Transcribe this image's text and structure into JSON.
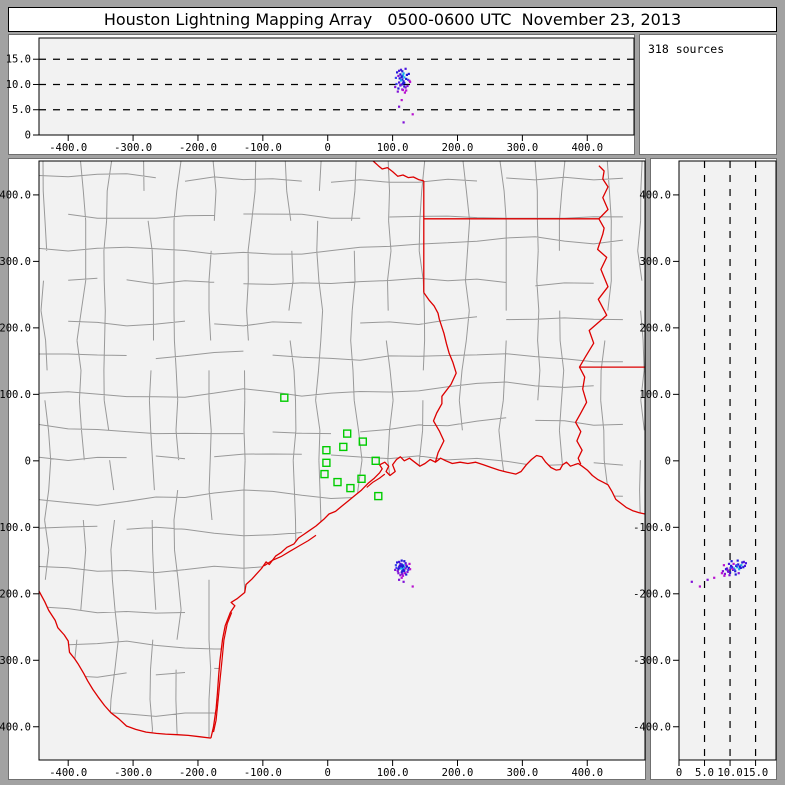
{
  "title": "Houston Lightning Mapping Array   0500-0600 UTC  November 23, 2013",
  "sources_label": "318 sources",
  "colors": {
    "page_bg": "#a2a2a2",
    "panel_bg": "#ffffff",
    "plot_bg": "#f2f2f2",
    "axis": "#000000",
    "grid_dash": "#000000",
    "county_line": "#999999",
    "state_border": "#dd0000",
    "station_green": "#00cc00"
  },
  "chart_data": {
    "type": "scatter",
    "title": "Houston Lightning Mapping Array   0500-0600 UTC  November 23, 2013",
    "sources_count": 318,
    "axes": {
      "ew_km": {
        "range": [
          -445,
          489
        ],
        "ticks": [
          -400,
          -300,
          -200,
          -100,
          0,
          100,
          200,
          300,
          400
        ],
        "tick_labels": [
          "-400.0",
          "-300.0",
          "-200.0",
          "-100.0",
          "0",
          "100.0",
          "200.0",
          "300.0",
          "400.0"
        ]
      },
      "ns_km": {
        "range": [
          -450,
          451
        ],
        "ticks": [
          400,
          300,
          200,
          100,
          0,
          -100,
          -200,
          -300,
          -400
        ],
        "tick_labels": [
          "400.0",
          "300.0",
          "200.0",
          "100.0",
          "0",
          "-100.0",
          "-200.0",
          "-300.0",
          "-400.0"
        ]
      },
      "alt_km": {
        "range": [
          0,
          19.2
        ],
        "ticks": [
          0,
          5,
          10,
          15
        ],
        "tick_labels": [
          "0",
          "5.0",
          "10.0",
          "15.0"
        ],
        "gridlines": [
          5,
          10,
          15
        ]
      }
    },
    "stations": [
      [
        -67,
        95
      ],
      [
        30,
        41
      ],
      [
        54,
        29
      ],
      [
        24,
        21
      ],
      [
        -2,
        16
      ],
      [
        74,
        0
      ],
      [
        -2,
        -3
      ],
      [
        -5,
        -20
      ],
      [
        52,
        -27
      ],
      [
        15,
        -32
      ],
      [
        35,
        -41
      ],
      [
        78,
        -53
      ]
    ],
    "point_colors": [
      "#2218d8",
      "#4a14e0",
      "#8012d8",
      "#b812d0",
      "#18b0e8",
      "#3c46ee"
    ],
    "points": [
      [
        113,
        -158,
        12.9,
        1
      ],
      [
        115,
        -160,
        12.6,
        0
      ],
      [
        117,
        -157,
        12.2,
        4
      ],
      [
        112,
        -161,
        12.0,
        0
      ],
      [
        116,
        -163,
        11.8,
        4
      ],
      [
        114,
        -156,
        11.6,
        0
      ],
      [
        118,
        -160,
        11.4,
        4
      ],
      [
        111,
        -158,
        11.2,
        0
      ],
      [
        115,
        -166,
        11.0,
        0
      ],
      [
        113,
        -162,
        10.8,
        4
      ],
      [
        117,
        -164,
        10.6,
        0
      ],
      [
        110,
        -160,
        10.4,
        1
      ],
      [
        116,
        -158,
        10.2,
        0
      ],
      [
        114,
        -168,
        10.0,
        0
      ],
      [
        112,
        -155,
        9.8,
        1
      ],
      [
        118,
        -166,
        9.6,
        0
      ],
      [
        120,
        -162,
        9.4,
        2
      ],
      [
        109,
        -163,
        9.2,
        0
      ],
      [
        115,
        -170,
        9.0,
        2
      ],
      [
        121,
        -157,
        8.8,
        3
      ],
      [
        108,
        -166,
        8.6,
        2
      ],
      [
        119,
        -169,
        8.4,
        3
      ],
      [
        107,
        -153,
        12.4,
        0
      ],
      [
        122,
        -159,
        11.9,
        0
      ],
      [
        124,
        -164,
        10.9,
        5
      ],
      [
        106,
        -161,
        10.1,
        5
      ],
      [
        123,
        -167,
        9.7,
        2
      ],
      [
        126,
        -155,
        10.7,
        3
      ],
      [
        105,
        -157,
        11.3,
        5
      ],
      [
        125,
        -161,
        12.1,
        0
      ],
      [
        110,
        -152,
        12.7,
        1
      ],
      [
        120,
        -154,
        13.1,
        1
      ],
      [
        112,
        -172,
        9.9,
        2
      ],
      [
        118,
        -151,
        10.3,
        0
      ],
      [
        116,
        -173,
        8.9,
        3
      ],
      [
        109,
        -169,
        11.7,
        2
      ],
      [
        121,
        -171,
        11.1,
        0
      ],
      [
        114,
        -150,
        11.5,
        0
      ],
      [
        127,
        -163,
        10.5,
        3
      ],
      [
        104,
        -164,
        9.5,
        2
      ],
      [
        114,
        -176,
        6.9,
        3
      ],
      [
        117,
        -182,
        2.5,
        2
      ],
      [
        131,
        -189,
        4.1,
        3
      ],
      [
        110,
        -179,
        5.6,
        2
      ]
    ],
    "map": {
      "county_seed": 42,
      "red_river": [
        [
          70,
          451
        ],
        [
          78,
          444
        ],
        [
          84,
          439
        ],
        [
          92,
          441
        ],
        [
          100,
          435
        ],
        [
          108,
          428
        ],
        [
          116,
          430
        ],
        [
          124,
          426
        ],
        [
          132,
          427
        ],
        [
          140,
          423
        ],
        [
          148,
          421
        ]
      ],
      "tx_ar_border": [
        [
          148,
          421
        ],
        [
          148,
          253
        ]
      ],
      "sabine_river": [
        [
          148,
          253
        ],
        [
          156,
          242
        ],
        [
          164,
          233
        ],
        [
          170,
          222
        ],
        [
          172,
          213
        ],
        [
          179,
          192
        ],
        [
          183,
          176
        ],
        [
          187,
          162
        ],
        [
          193,
          148
        ],
        [
          198,
          132
        ],
        [
          190,
          115
        ],
        [
          176,
          97
        ],
        [
          176,
          86
        ],
        [
          168,
          72
        ],
        [
          163,
          60
        ],
        [
          172,
          45
        ],
        [
          179,
          30
        ],
        [
          170,
          12
        ],
        [
          166,
          -2
        ]
      ],
      "ar_la_border": [
        [
          148,
          364
        ],
        [
          418,
          364
        ]
      ],
      "mississippi_river": [
        [
          418,
          444
        ],
        [
          426,
          436
        ],
        [
          424,
          424
        ],
        [
          432,
          412
        ],
        [
          424,
          396
        ],
        [
          432,
          378
        ],
        [
          418,
          364
        ],
        [
          426,
          350
        ],
        [
          424,
          341
        ],
        [
          416,
          318
        ],
        [
          430,
          306
        ],
        [
          421,
          288
        ],
        [
          432,
          262
        ],
        [
          417,
          243
        ],
        [
          430,
          219
        ],
        [
          403,
          196
        ],
        [
          410,
          177
        ],
        [
          397,
          156
        ],
        [
          388,
          141
        ],
        [
          396,
          126
        ],
        [
          393,
          108
        ],
        [
          399,
          88
        ],
        [
          389,
          70
        ],
        [
          382,
          58
        ],
        [
          390,
          44
        ],
        [
          384,
          30
        ],
        [
          392,
          16
        ],
        [
          386,
          4
        ],
        [
          390,
          -5
        ]
      ],
      "la_ms_border": [
        [
          388,
          141
        ],
        [
          489,
          141
        ]
      ],
      "rio_grande": [
        [
          -445,
          -196
        ],
        [
          -436,
          -212
        ],
        [
          -430,
          -225
        ],
        [
          -420,
          -240
        ],
        [
          -416,
          -251
        ],
        [
          -406,
          -262
        ],
        [
          -400,
          -271
        ],
        [
          -398,
          -288
        ],
        [
          -390,
          -298
        ],
        [
          -385,
          -305
        ],
        [
          -376,
          -320
        ],
        [
          -370,
          -331
        ],
        [
          -362,
          -344
        ],
        [
          -354,
          -355
        ],
        [
          -344,
          -368
        ],
        [
          -334,
          -379
        ],
        [
          -322,
          -388
        ],
        [
          -310,
          -399
        ],
        [
          -296,
          -404
        ],
        [
          -280,
          -408
        ],
        [
          -264,
          -410
        ],
        [
          -250,
          -411
        ],
        [
          -232,
          -412
        ],
        [
          -215,
          -413
        ],
        [
          -198,
          -415
        ],
        [
          -180,
          -417
        ]
      ],
      "coastline": [
        [
          -180,
          -417
        ],
        [
          -176,
          -400
        ],
        [
          -172,
          -373
        ],
        [
          -170,
          -350
        ],
        [
          -168,
          -322
        ],
        [
          -166,
          -300
        ],
        [
          -162,
          -268
        ],
        [
          -158,
          -248
        ],
        [
          -150,
          -228
        ],
        [
          -143,
          -218
        ],
        [
          -149,
          -213
        ],
        [
          -139,
          -207
        ],
        [
          -128,
          -198
        ],
        [
          -126,
          -186
        ],
        [
          -117,
          -178
        ],
        [
          -102,
          -162
        ],
        [
          -95,
          -152
        ],
        [
          -90,
          -156
        ],
        [
          -80,
          -143
        ],
        [
          -72,
          -138
        ],
        [
          -63,
          -130
        ],
        [
          -52,
          -125
        ],
        [
          -45,
          -116
        ],
        [
          -36,
          -110
        ],
        [
          -30,
          -106
        ],
        [
          -18,
          -98
        ],
        [
          -6,
          -88
        ],
        [
          2,
          -80
        ],
        [
          12,
          -76
        ],
        [
          22,
          -68
        ],
        [
          32,
          -60
        ],
        [
          42,
          -52
        ],
        [
          52,
          -44
        ],
        [
          62,
          -34
        ],
        [
          72,
          -26
        ],
        [
          80,
          -18
        ],
        [
          84,
          -12
        ],
        [
          80,
          -6
        ],
        [
          88,
          -2
        ],
        [
          94,
          -8
        ],
        [
          90,
          -16
        ],
        [
          96,
          -22
        ],
        [
          104,
          -16
        ],
        [
          100,
          -6
        ],
        [
          106,
          2
        ],
        [
          112,
          6
        ],
        [
          118,
          0
        ],
        [
          126,
          4
        ],
        [
          134,
          -2
        ],
        [
          142,
          -8
        ],
        [
          150,
          -4
        ],
        [
          158,
          2
        ],
        [
          166,
          -2
        ],
        [
          174,
          4
        ],
        [
          182,
          0
        ],
        [
          192,
          -4
        ],
        [
          204,
          -2
        ],
        [
          216,
          -4
        ],
        [
          228,
          -2
        ],
        [
          240,
          -6
        ],
        [
          252,
          -10
        ],
        [
          264,
          -14
        ],
        [
          276,
          -17
        ],
        [
          290,
          -20
        ],
        [
          298,
          -16
        ],
        [
          306,
          -6
        ],
        [
          314,
          2
        ],
        [
          322,
          8
        ],
        [
          330,
          6
        ],
        [
          336,
          -2
        ],
        [
          344,
          -10
        ],
        [
          352,
          -14
        ],
        [
          358,
          -13
        ],
        [
          362,
          -6
        ],
        [
          368,
          -2
        ],
        [
          374,
          -8
        ],
        [
          380,
          -6
        ],
        [
          386,
          -4
        ],
        [
          392,
          -8
        ],
        [
          400,
          -14
        ],
        [
          408,
          -22
        ],
        [
          416,
          -28
        ],
        [
          424,
          -32
        ],
        [
          432,
          -36
        ],
        [
          438,
          -46
        ],
        [
          444,
          -58
        ],
        [
          452,
          -64
        ],
        [
          460,
          -70
        ],
        [
          470,
          -75
        ],
        [
          480,
          -78
        ],
        [
          489,
          -80
        ]
      ],
      "barrier_islands": [
        [
          [
            -176,
            -408
          ],
          [
            -172,
            -390
          ],
          [
            -169,
            -360
          ],
          [
            -166,
            -330
          ],
          [
            -163,
            -300
          ],
          [
            -160,
            -270
          ],
          [
            -155,
            -245
          ],
          [
            -148,
            -228
          ]
        ],
        [
          [
            -98,
            -158
          ],
          [
            -86,
            -150
          ],
          [
            -72,
            -144
          ],
          [
            -58,
            -136
          ],
          [
            -44,
            -128
          ],
          [
            -30,
            -120
          ],
          [
            -18,
            -112
          ]
        ],
        [
          [
            60,
            -40
          ],
          [
            70,
            -32
          ],
          [
            80,
            -26
          ],
          [
            88,
            -20
          ]
        ]
      ]
    }
  }
}
